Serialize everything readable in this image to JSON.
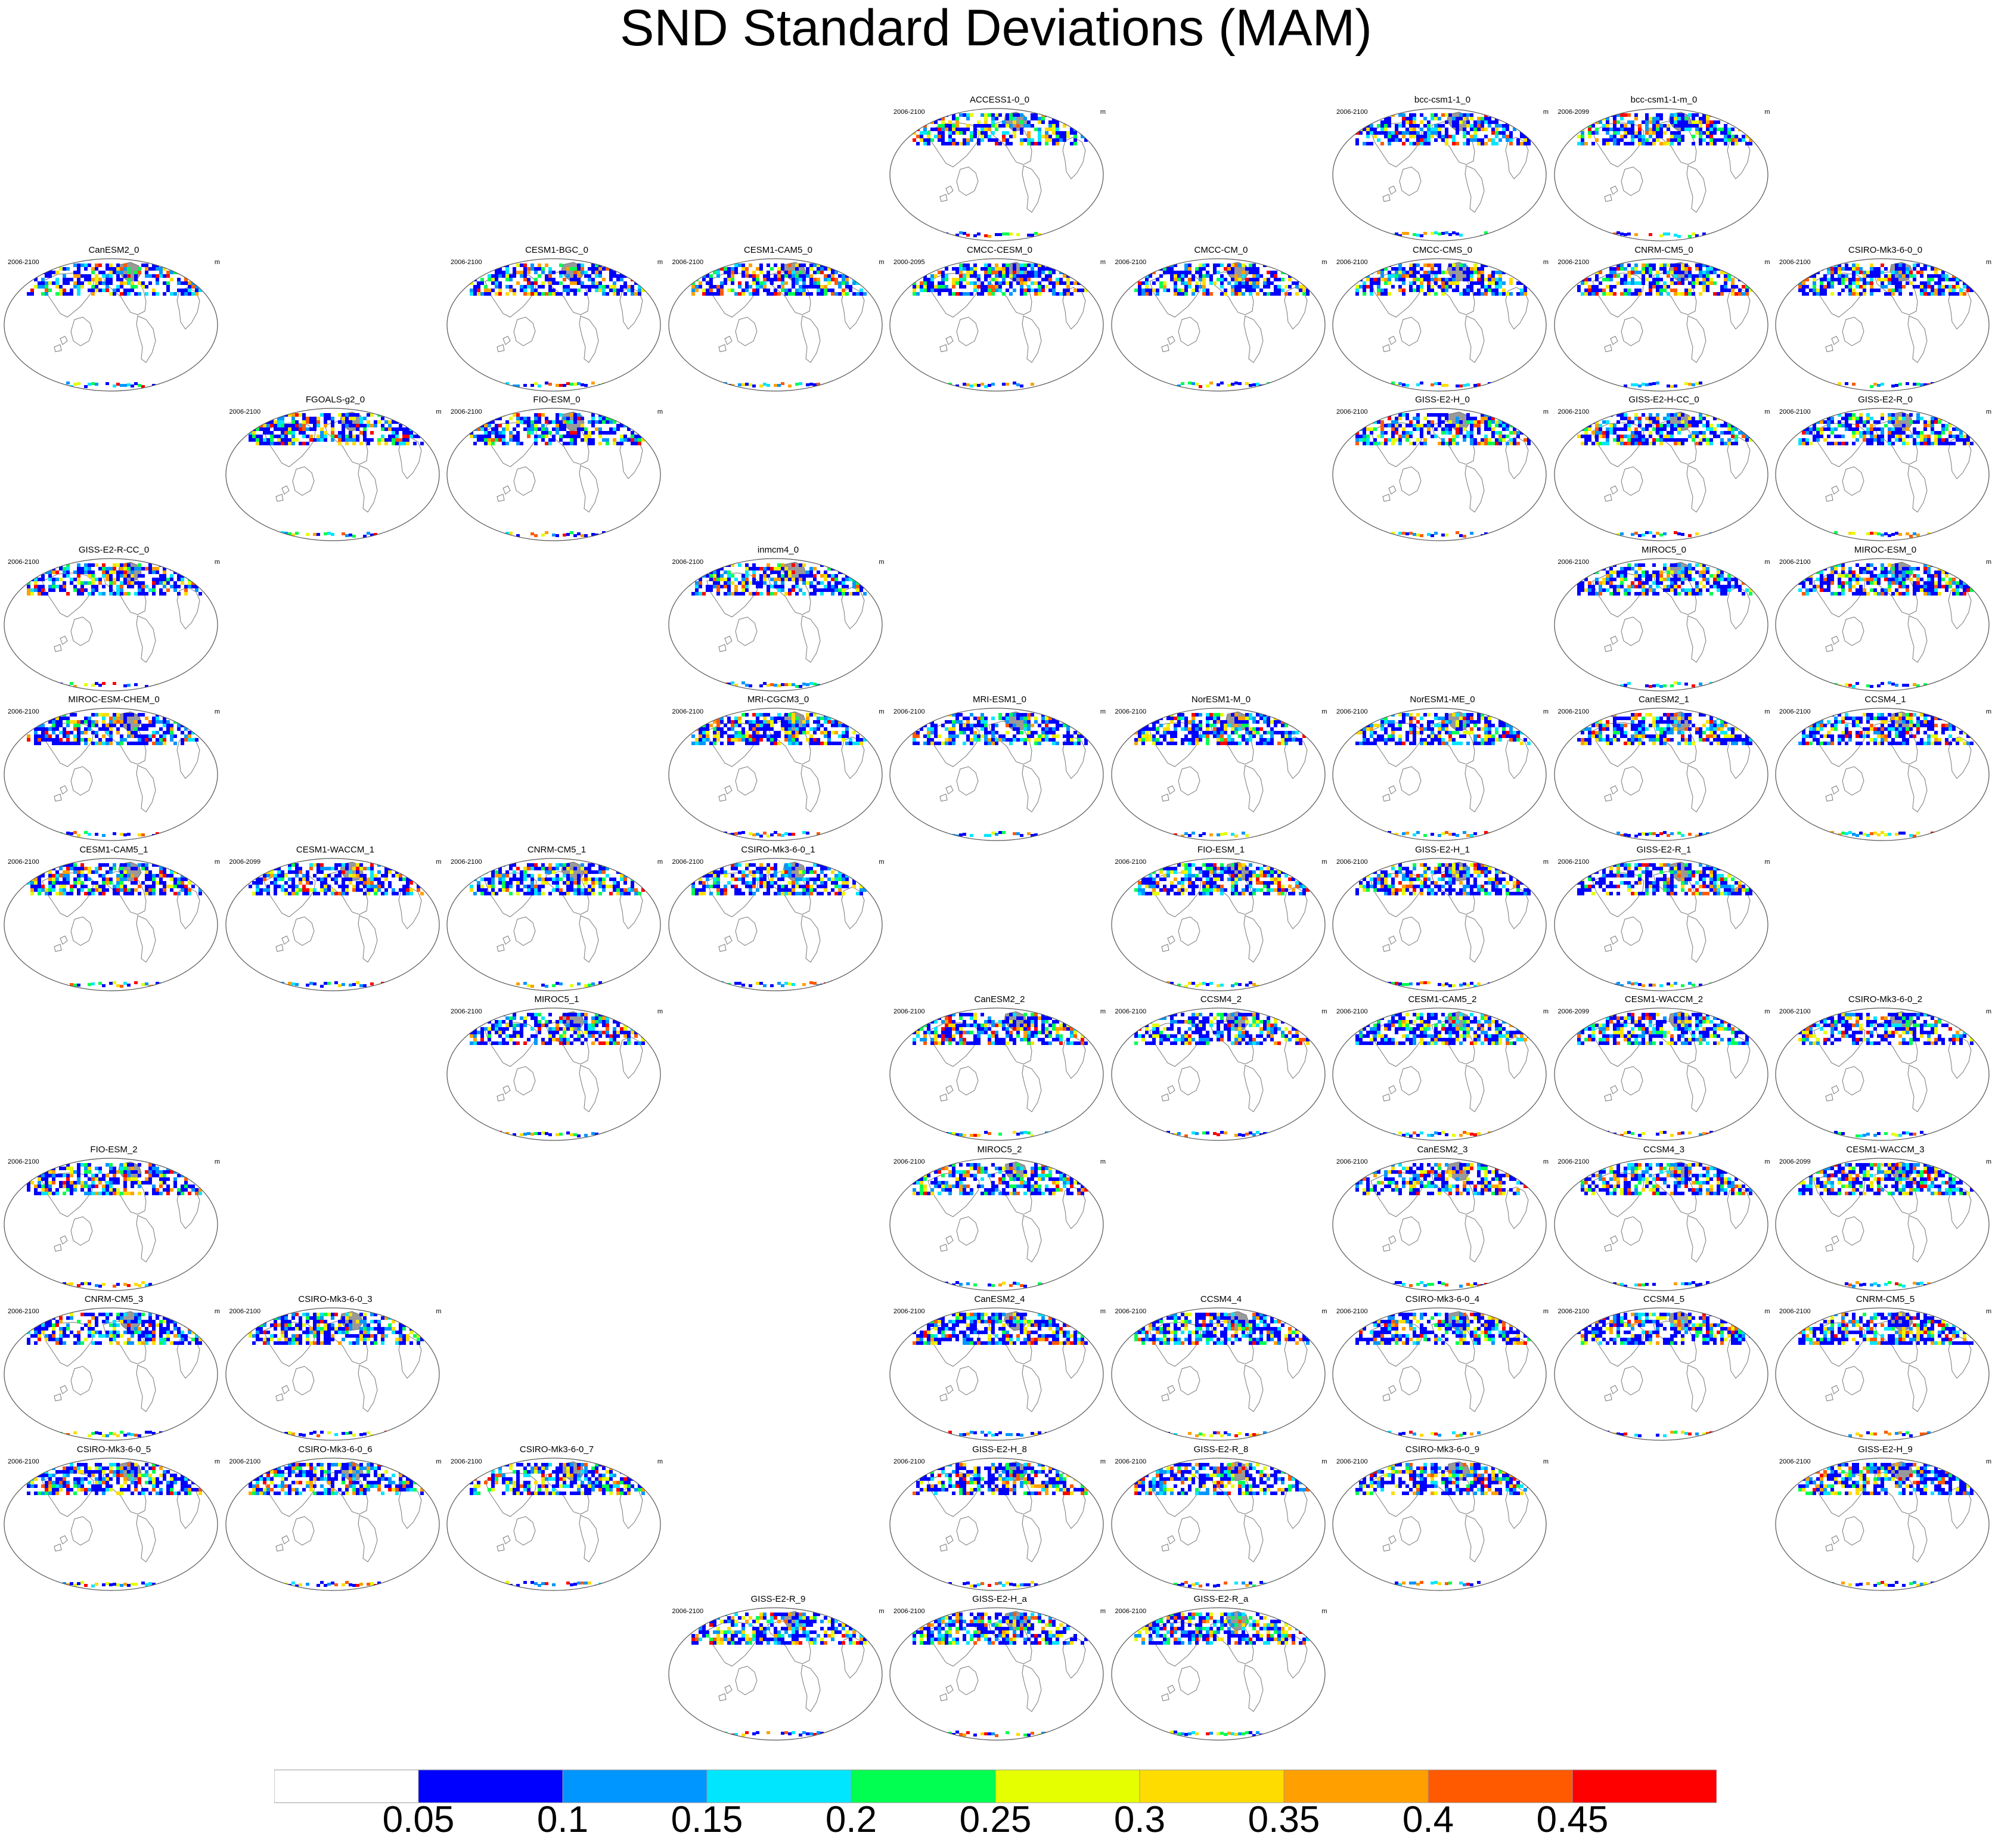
{
  "title": "SND Standard Deviations (MAM)",
  "unit": "m",
  "panels": [
    {
      "name": "ACCESS1-0_0",
      "years": "2006-2100",
      "col": 4,
      "row": 0
    },
    {
      "name": "bcc-csm1-1_0",
      "years": "2006-2100",
      "col": 6,
      "row": 0
    },
    {
      "name": "bcc-csm1-1-m_0",
      "years": "2006-2099",
      "col": 7,
      "row": 0
    },
    {
      "name": "CanESM2_0",
      "years": "2006-2100",
      "col": 0,
      "row": 1
    },
    {
      "name": "CESM1-BGC_0",
      "years": "2006-2100",
      "col": 2,
      "row": 1
    },
    {
      "name": "CESM1-CAM5_0",
      "years": "2006-2100",
      "col": 3,
      "row": 1
    },
    {
      "name": "CMCC-CESM_0",
      "years": "2000-2095",
      "col": 4,
      "row": 1
    },
    {
      "name": "CMCC-CM_0",
      "years": "2006-2100",
      "col": 5,
      "row": 1
    },
    {
      "name": "CMCC-CMS_0",
      "years": "2006-2100",
      "col": 6,
      "row": 1
    },
    {
      "name": "CNRM-CM5_0",
      "years": "2006-2100",
      "col": 7,
      "row": 1
    },
    {
      "name": "CSIRO-Mk3-6-0_0",
      "years": "2006-2100",
      "col": 8,
      "row": 1
    },
    {
      "name": "FGOALS-g2_0",
      "years": "2006-2100",
      "col": 1,
      "row": 2
    },
    {
      "name": "FIO-ESM_0",
      "years": "2006-2100",
      "col": 2,
      "row": 2
    },
    {
      "name": "GISS-E2-H_0",
      "years": "2006-2100",
      "col": 6,
      "row": 2
    },
    {
      "name": "GISS-E2-H-CC_0",
      "years": "2006-2100",
      "col": 7,
      "row": 2
    },
    {
      "name": "GISS-E2-R_0",
      "years": "2006-2100",
      "col": 8,
      "row": 2
    },
    {
      "name": "GISS-E2-R-CC_0",
      "years": "2006-2100",
      "col": 0,
      "row": 3
    },
    {
      "name": "inmcm4_0",
      "years": "2006-2100",
      "col": 3,
      "row": 3
    },
    {
      "name": "MIROC5_0",
      "years": "2006-2100",
      "col": 7,
      "row": 3
    },
    {
      "name": "MIROC-ESM_0",
      "years": "2006-2100",
      "col": 8,
      "row": 3
    },
    {
      "name": "MIROC-ESM-CHEM_0",
      "years": "2006-2100",
      "col": 0,
      "row": 4
    },
    {
      "name": "MRI-CGCM3_0",
      "years": "2006-2100",
      "col": 3,
      "row": 4
    },
    {
      "name": "MRI-ESM1_0",
      "years": "2006-2100",
      "col": 4,
      "row": 4
    },
    {
      "name": "NorESM1-M_0",
      "years": "2006-2100",
      "col": 5,
      "row": 4
    },
    {
      "name": "NorESM1-ME_0",
      "years": "2006-2100",
      "col": 6,
      "row": 4
    },
    {
      "name": "CanESM2_1",
      "years": "2006-2100",
      "col": 7,
      "row": 4
    },
    {
      "name": "CCSM4_1",
      "years": "2006-2100",
      "col": 8,
      "row": 4
    },
    {
      "name": "CESM1-CAM5_1",
      "years": "2006-2100",
      "col": 0,
      "row": 5
    },
    {
      "name": "CESM1-WACCM_1",
      "years": "2006-2099",
      "col": 1,
      "row": 5
    },
    {
      "name": "CNRM-CM5_1",
      "years": "2006-2100",
      "col": 2,
      "row": 5
    },
    {
      "name": "CSIRO-Mk3-6-0_1",
      "years": "2006-2100",
      "col": 3,
      "row": 5
    },
    {
      "name": "FIO-ESM_1",
      "years": "2006-2100",
      "col": 5,
      "row": 5
    },
    {
      "name": "GISS-E2-H_1",
      "years": "2006-2100",
      "col": 6,
      "row": 5
    },
    {
      "name": "GISS-E2-R_1",
      "years": "2006-2100",
      "col": 7,
      "row": 5
    },
    {
      "name": "MIROC5_1",
      "years": "2006-2100",
      "col": 2,
      "row": 6
    },
    {
      "name": "CanESM2_2",
      "years": "2006-2100",
      "col": 4,
      "row": 6
    },
    {
      "name": "CCSM4_2",
      "years": "2006-2100",
      "col": 5,
      "row": 6
    },
    {
      "name": "CESM1-CAM5_2",
      "years": "2006-2100",
      "col": 6,
      "row": 6
    },
    {
      "name": "CESM1-WACCM_2",
      "years": "2006-2099",
      "col": 7,
      "row": 6
    },
    {
      "name": "CSIRO-Mk3-6-0_2",
      "years": "2006-2100",
      "col": 8,
      "row": 6
    },
    {
      "name": "FIO-ESM_2",
      "years": "2006-2100",
      "col": 0,
      "row": 7
    },
    {
      "name": "MIROC5_2",
      "years": "2006-2100",
      "col": 4,
      "row": 7
    },
    {
      "name": "CanESM2_3",
      "years": "2006-2100",
      "col": 6,
      "row": 7
    },
    {
      "name": "CCSM4_3",
      "years": "2006-2100",
      "col": 7,
      "row": 7
    },
    {
      "name": "CESM1-WACCM_3",
      "years": "2006-2099",
      "col": 8,
      "row": 7
    },
    {
      "name": "CNRM-CM5_3",
      "years": "2006-2100",
      "col": 0,
      "row": 8
    },
    {
      "name": "CSIRO-Mk3-6-0_3",
      "years": "2006-2100",
      "col": 1,
      "row": 8
    },
    {
      "name": "CanESM2_4",
      "years": "2006-2100",
      "col": 4,
      "row": 8
    },
    {
      "name": "CCSM4_4",
      "years": "2006-2100",
      "col": 5,
      "row": 8
    },
    {
      "name": "CSIRO-Mk3-6-0_4",
      "years": "2006-2100",
      "col": 6,
      "row": 8
    },
    {
      "name": "CCSM4_5",
      "years": "2006-2100",
      "col": 7,
      "row": 8
    },
    {
      "name": "CNRM-CM5_5",
      "years": "2006-2100",
      "col": 8,
      "row": 8
    },
    {
      "name": "CSIRO-Mk3-6-0_5",
      "years": "2006-2100",
      "col": 0,
      "row": 9
    },
    {
      "name": "CSIRO-Mk3-6-0_6",
      "years": "2006-2100",
      "col": 1,
      "row": 9
    },
    {
      "name": "CSIRO-Mk3-6-0_7",
      "years": "2006-2100",
      "col": 2,
      "row": 9
    },
    {
      "name": "GISS-E2-H_8",
      "years": "2006-2100",
      "col": 4,
      "row": 9
    },
    {
      "name": "GISS-E2-R_8",
      "years": "2006-2100",
      "col": 5,
      "row": 9
    },
    {
      "name": "CSIRO-Mk3-6-0_9",
      "years": "2006-2100",
      "col": 6,
      "row": 9
    },
    {
      "name": "GISS-E2-H_9",
      "years": "2006-2100",
      "col": 8,
      "row": 9
    },
    {
      "name": "GISS-E2-R_9",
      "years": "2006-2100",
      "col": 3,
      "row": 10
    },
    {
      "name": "GISS-E2-H_a",
      "years": "2006-2100",
      "col": 4,
      "row": 10
    },
    {
      "name": "GISS-E2-R_a",
      "years": "2006-2100",
      "col": 5,
      "row": 10
    }
  ],
  "colorbar": {
    "levels": [
      "0.05",
      "0.1",
      "0.15",
      "0.2",
      "0.25",
      "0.3",
      "0.35",
      "0.4",
      "0.45"
    ],
    "colors": [
      "#ffffff",
      "#0000ff",
      "#0096ff",
      "#00e6ff",
      "#00ff50",
      "#e6ff00",
      "#ffdc00",
      "#ffa000",
      "#ff5a00",
      "#ff0000"
    ]
  },
  "colors": {
    "coastline": "#777777",
    "map_outline": "#555555",
    "greenland": "#999999"
  }
}
